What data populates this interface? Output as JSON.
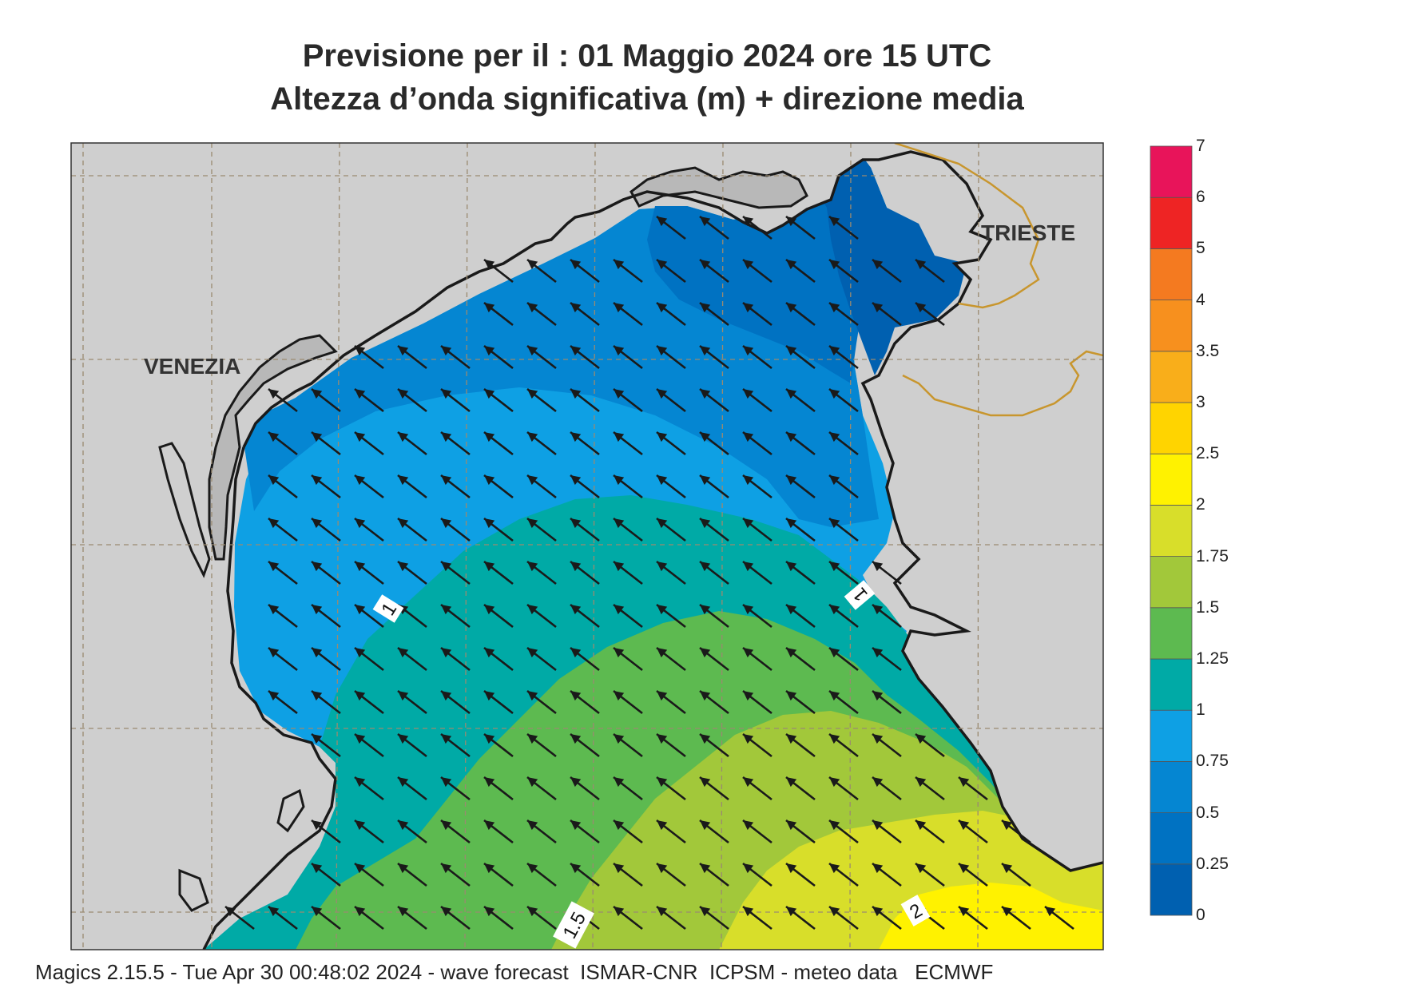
{
  "title": {
    "line1": "Previsione per il  :  01   Maggio  2024   ore 15 UTC",
    "line2": "Altezza d’onda significativa (m) + direzione media"
  },
  "places": {
    "venezia": "VENEZIA",
    "trieste": "TRIESTE"
  },
  "contour_labels": [
    "1",
    "1",
    "1.5",
    "2"
  ],
  "colorbar": {
    "labels": [
      "0",
      "0.25",
      "0.5",
      "0.75",
      "1",
      "1.25",
      "1.5",
      "1.75",
      "2",
      "2.5",
      "3",
      "3.5",
      "4",
      "5",
      "6",
      "7"
    ],
    "colors": [
      "#0060b0",
      "#0072c2",
      "#0586d2",
      "#0ea0e4",
      "#00aaa6",
      "#5dba50",
      "#a2c83a",
      "#d8de2a",
      "#fff200",
      "#ffd400",
      "#f9ae1a",
      "#f7901e",
      "#f47a20",
      "#ee2424",
      "#e8145a"
    ]
  },
  "wave_direction": "north-west",
  "colors": {
    "land": "#cfcfcf",
    "coast": "#1a1a1a",
    "grid": "#9a8a70",
    "border": "#c8962e"
  },
  "footer": "Magics 2.15.5 - Tue Apr 30 00:48:02 2024 - wave forecast  ISMAR-CNR  ICPSM - meteo data   ECMWF"
}
